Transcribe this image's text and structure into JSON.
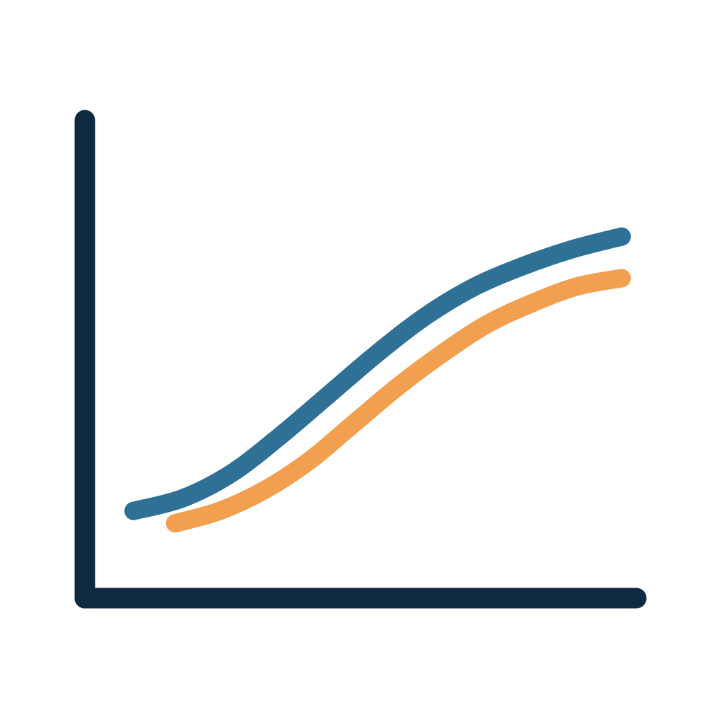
{
  "chart_data": {
    "type": "line",
    "x": [
      0,
      1,
      2,
      3,
      4,
      5,
      6,
      7,
      8,
      9,
      10
    ],
    "series": [
      {
        "color": "#2e7096",
        "values": [
          2.1,
          2.4,
          3.0,
          3.9,
          4.9,
          5.9,
          6.8,
          7.5,
          8.0,
          8.4,
          8.7
        ]
      },
      {
        "color": "#f2a04f",
        "values": [
          1.8,
          2.1,
          2.6,
          3.3,
          4.2,
          5.1,
          5.9,
          6.6,
          7.1,
          7.5,
          7.7
        ]
      }
    ],
    "title": "",
    "xlabel": "",
    "ylabel": "",
    "xlim": [
      -1,
      10.3
    ],
    "ylim": [
      0,
      11.5
    ],
    "grid": false,
    "axis_color": "#0f2a40"
  }
}
